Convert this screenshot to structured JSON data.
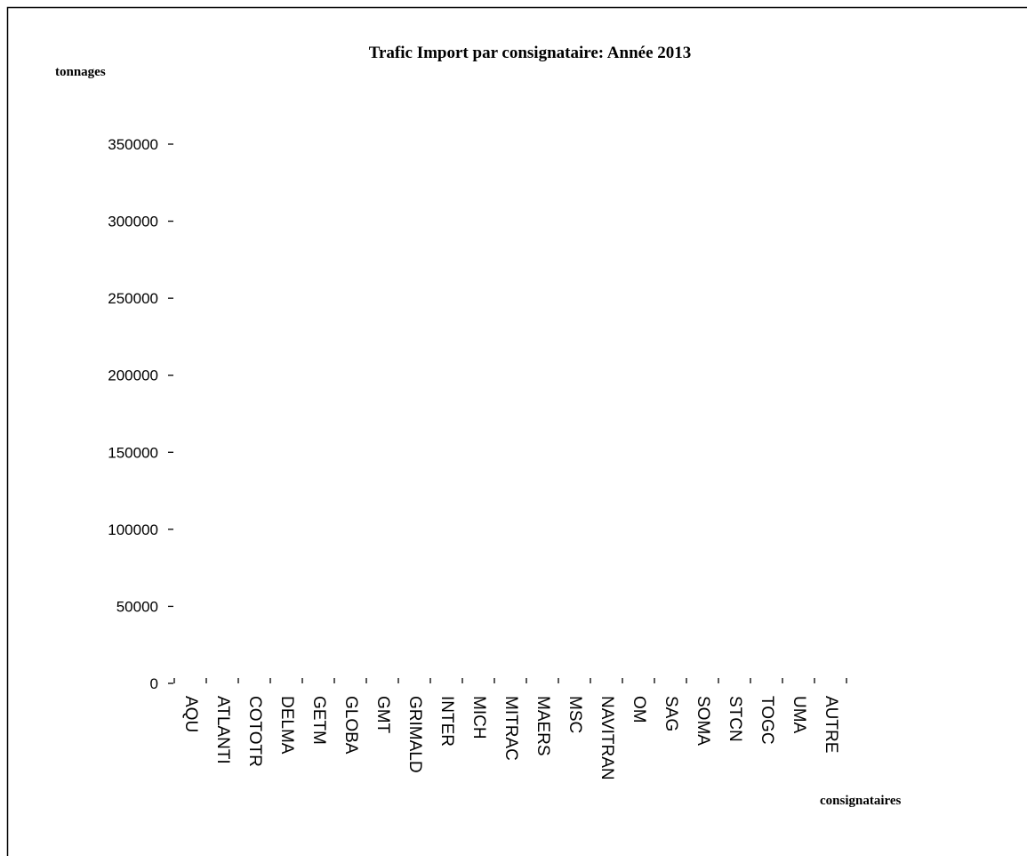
{
  "chart_data": {
    "type": "bar",
    "title": "Trafic Import par consignataire: Année 2013",
    "y_label": "tonnages",
    "x_label": "consignataires",
    "categories": [
      "AQU",
      "ATLANTI",
      "COTOTR",
      "DELMA",
      "GETM",
      "GLOBA",
      "GMT",
      "GRIMALD",
      "INTER",
      "MICH",
      "MITRAC",
      "MAERS",
      "MSC",
      "NAVITRAN",
      "OM",
      "SAG",
      "SOMA",
      "STCN",
      "TOGC",
      "UMA",
      "AUTRE"
    ],
    "ylim": [
      0,
      350000
    ],
    "yticks": [
      0,
      50000,
      100000,
      150000,
      200000,
      250000,
      300000,
      350000
    ]
  }
}
